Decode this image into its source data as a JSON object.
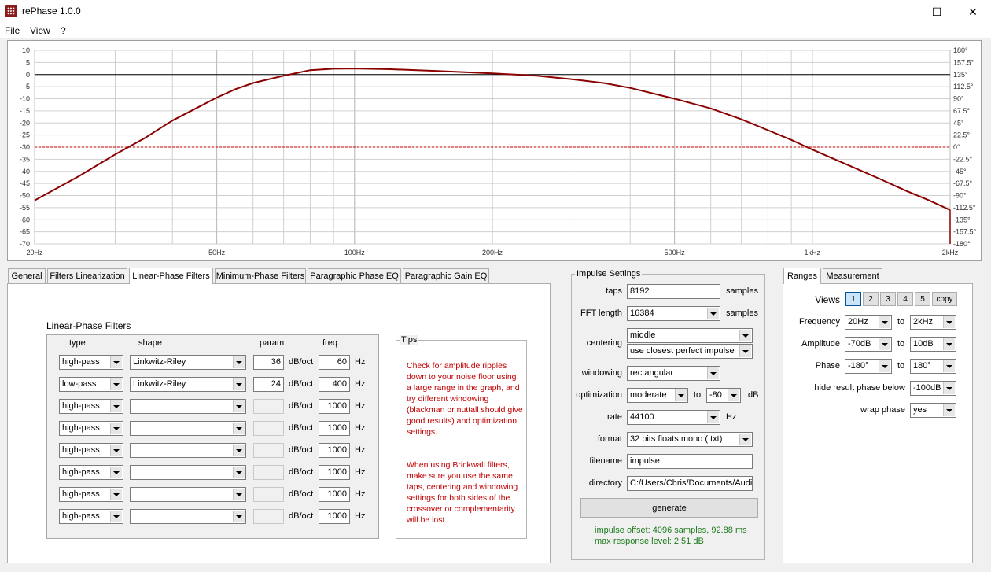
{
  "window": {
    "title": "rePhase 1.0.0",
    "icon": "rephase-app-icon",
    "controls": {
      "minimize": "—",
      "maximize": "☐",
      "close": "✕"
    }
  },
  "menu": [
    "File",
    "View",
    "?"
  ],
  "graph": {
    "left_axis": [
      "10",
      "5",
      "0",
      "-5",
      "-10",
      "-15",
      "-20",
      "-25",
      "-30",
      "-35",
      "-40",
      "-45",
      "-50",
      "-55",
      "-60",
      "-65",
      "-70"
    ],
    "right_axis": [
      "180°",
      "157.5°",
      "135°",
      "112.5°",
      "90°",
      "67.5°",
      "45°",
      "22.5°",
      "0°",
      "-22.5°",
      "-45°",
      "-67.5°",
      "-90°",
      "-112.5°",
      "-135°",
      "-157.5°",
      "-180°"
    ],
    "x_ticks": [
      {
        "f": 20,
        "label": "20Hz"
      },
      {
        "f": 50,
        "label": "50Hz"
      },
      {
        "f": 100,
        "label": "100Hz"
      },
      {
        "f": 200,
        "label": "200Hz"
      },
      {
        "f": 500,
        "label": "500Hz"
      },
      {
        "f": 1000,
        "label": "1kHz"
      },
      {
        "f": 2000,
        "label": "2kHz"
      }
    ],
    "freq_range": [
      20,
      2000
    ],
    "db_range": [
      -70,
      10
    ],
    "reference_level_db": -30,
    "curve": [
      [
        20,
        -52
      ],
      [
        25,
        -42
      ],
      [
        30,
        -33
      ],
      [
        35,
        -26
      ],
      [
        40,
        -19
      ],
      [
        45,
        -14
      ],
      [
        50,
        -9.5
      ],
      [
        55,
        -6
      ],
      [
        60,
        -3.5
      ],
      [
        70,
        -0.5
      ],
      [
        80,
        1.8
      ],
      [
        90,
        2.4
      ],
      [
        100,
        2.5
      ],
      [
        120,
        2.2
      ],
      [
        150,
        1.5
      ],
      [
        200,
        0.5
      ],
      [
        250,
        -0.5
      ],
      [
        300,
        -2
      ],
      [
        350,
        -3.5
      ],
      [
        400,
        -5.5
      ],
      [
        500,
        -10
      ],
      [
        600,
        -14
      ],
      [
        700,
        -18.5
      ],
      [
        800,
        -23
      ],
      [
        900,
        -27
      ],
      [
        1000,
        -31
      ],
      [
        1200,
        -37.5
      ],
      [
        1400,
        -43
      ],
      [
        1600,
        -48
      ],
      [
        1800,
        -52
      ],
      [
        2000,
        -56
      ]
    ],
    "colors": {
      "curve": "#8b0000",
      "reference": "#cc0000",
      "zero_line": "#000000",
      "grid": "#d0d0d0"
    }
  },
  "left_tabs": [
    "General",
    "Filters Linearization",
    "Linear-Phase Filters",
    "Minimum-Phase Filters",
    "Paragraphic Phase EQ",
    "Paragraphic Gain EQ"
  ],
  "active_left_tab": "Linear-Phase Filters",
  "linear_phase": {
    "group_title": "Linear-Phase Filters",
    "headers": {
      "type": "type",
      "shape": "shape",
      "param": "param",
      "freq": "freq"
    },
    "rows": [
      {
        "type": "high-pass",
        "shape": "Linkwitz-Riley",
        "param": "36",
        "unit": "dB/oct",
        "freq": "60",
        "hz": "Hz"
      },
      {
        "type": "low-pass",
        "shape": "Linkwitz-Riley",
        "param": "24",
        "unit": "dB/oct",
        "freq": "400",
        "hz": "Hz"
      },
      {
        "type": "high-pass",
        "shape": "",
        "param": "",
        "unit": "dB/oct",
        "freq": "1000",
        "hz": "Hz"
      },
      {
        "type": "high-pass",
        "shape": "",
        "param": "",
        "unit": "dB/oct",
        "freq": "1000",
        "hz": "Hz"
      },
      {
        "type": "high-pass",
        "shape": "",
        "param": "",
        "unit": "dB/oct",
        "freq": "1000",
        "hz": "Hz"
      },
      {
        "type": "high-pass",
        "shape": "",
        "param": "",
        "unit": "dB/oct",
        "freq": "1000",
        "hz": "Hz"
      },
      {
        "type": "high-pass",
        "shape": "",
        "param": "",
        "unit": "dB/oct",
        "freq": "1000",
        "hz": "Hz"
      },
      {
        "type": "high-pass",
        "shape": "",
        "param": "",
        "unit": "dB/oct",
        "freq": "1000",
        "hz": "Hz"
      }
    ],
    "tips": {
      "title": "Tips",
      "text1": "Check for amplitude ripples down to your noise floor using a large range in the graph, and try different windowing (blackman or nuttall should give good results) and optimization settings.",
      "text2": "When using Brickwall filters, make sure you use the same taps, centering and windowing settings for both sides of the crossover or complementarity will be lost."
    }
  },
  "impulse": {
    "title": "Impulse Settings",
    "taps_label": "taps",
    "taps": "8192",
    "taps_unit": "samples",
    "fft_label": "FFT length",
    "fft": "16384",
    "fft_unit": "samples",
    "centering_label": "centering",
    "centering": "middle",
    "centering2": "use closest perfect impulse",
    "windowing_label": "windowing",
    "windowing": "rectangular",
    "optimization_label": "optimization",
    "optimization": "moderate",
    "to_label": "to",
    "opt_db": "-80",
    "db_unit": "dB",
    "rate_label": "rate",
    "rate": "44100",
    "rate_unit": "Hz",
    "format_label": "format",
    "format": "32 bits floats mono (.txt)",
    "filename_label": "filename",
    "filename": "impulse",
    "directory_label": "directory",
    "directory": "C:/Users/Chris/Documents/Audio",
    "generate_label": "generate",
    "status1": "impulse offset: 4096 samples, 92.88 ms",
    "status2": "max response level: 2.51 dB"
  },
  "right_tabs": [
    "Ranges",
    "Measurement"
  ],
  "active_right_tab": "Ranges",
  "ranges": {
    "views_label": "Views",
    "views": [
      "1",
      "2",
      "3",
      "4",
      "5"
    ],
    "active_view": "1",
    "copy_label": "copy",
    "frequency_label": "Frequency",
    "freq_from": "20Hz",
    "freq_to": "2kHz",
    "amplitude_label": "Amplitude",
    "amp_from": "-70dB",
    "amp_to": "10dB",
    "phase_label": "Phase",
    "phase_from": "-180°",
    "phase_to": "180°",
    "to_label": "to",
    "hide_label": "hide result phase below",
    "hide_value": "-100dB",
    "wrap_label": "wrap phase",
    "wrap_value": "yes"
  }
}
